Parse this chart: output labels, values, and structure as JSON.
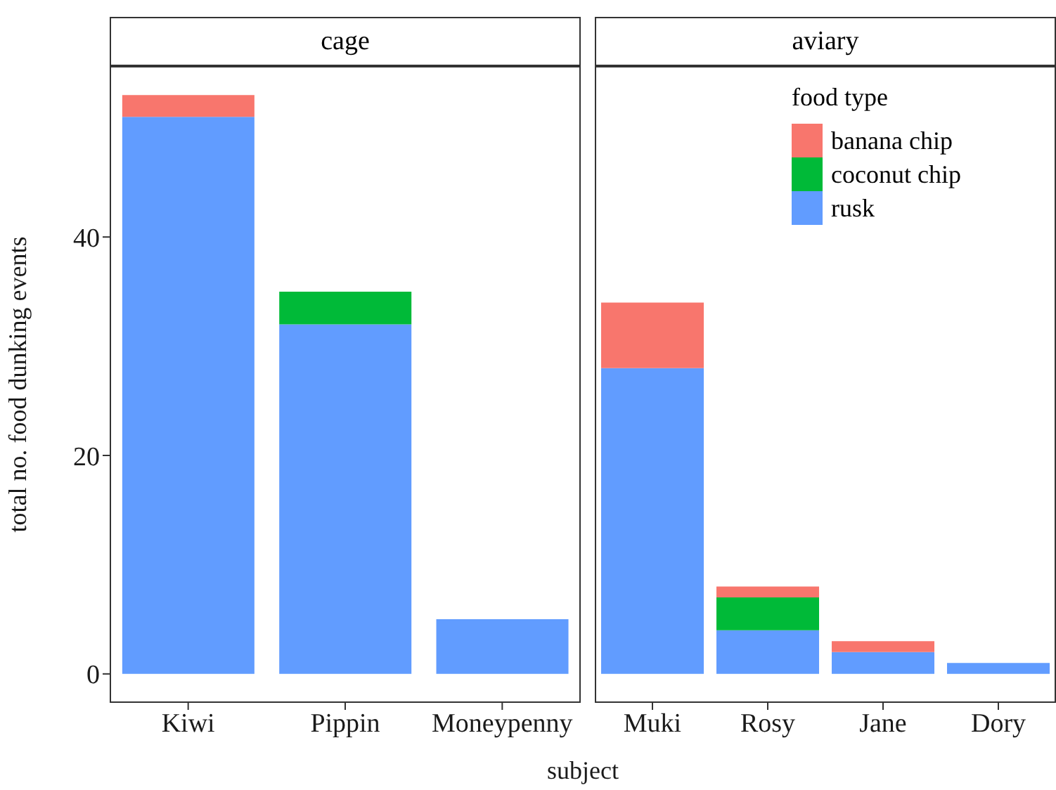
{
  "chart_data": [
    {
      "type": "bar",
      "title": "cage",
      "ylabel": "total no. food dunking events",
      "xlabel": "subject",
      "categories": [
        "Kiwi",
        "Pippin",
        "Moneypenny"
      ],
      "stacked": true,
      "ylim": [
        -2.65,
        55.65
      ],
      "yticks": [
        0,
        20,
        40
      ],
      "grid": false,
      "legend": false,
      "series": [
        {
          "color": "#619cff",
          "values": [
            51,
            32,
            5
          ]
        },
        {
          "color": "#00ba38",
          "values": [
            0,
            3,
            0
          ]
        },
        {
          "color": "#f8766d",
          "values": [
            2,
            0,
            0
          ]
        }
      ]
    },
    {
      "type": "bar",
      "title": "aviary",
      "legend_title": "food type",
      "categories": [
        "Muki",
        "Rosy",
        "Jane",
        "Dory"
      ],
      "stacked": true,
      "ylim": [
        -2.65,
        55.65
      ],
      "yticks": [
        0,
        20,
        40
      ],
      "tick_labels": "x",
      "grid": false,
      "legend": "top right",
      "series": [
        {
          "name": "rusk",
          "color": "#619cff",
          "values": [
            28,
            4,
            2,
            1
          ]
        },
        {
          "name": "coconut chip",
          "color": "#00ba38",
          "values": [
            0,
            3,
            0,
            0
          ]
        },
        {
          "name": "banana chip",
          "color": "#f8766d",
          "values": [
            6,
            1,
            1,
            0
          ]
        }
      ]
    }
  ]
}
